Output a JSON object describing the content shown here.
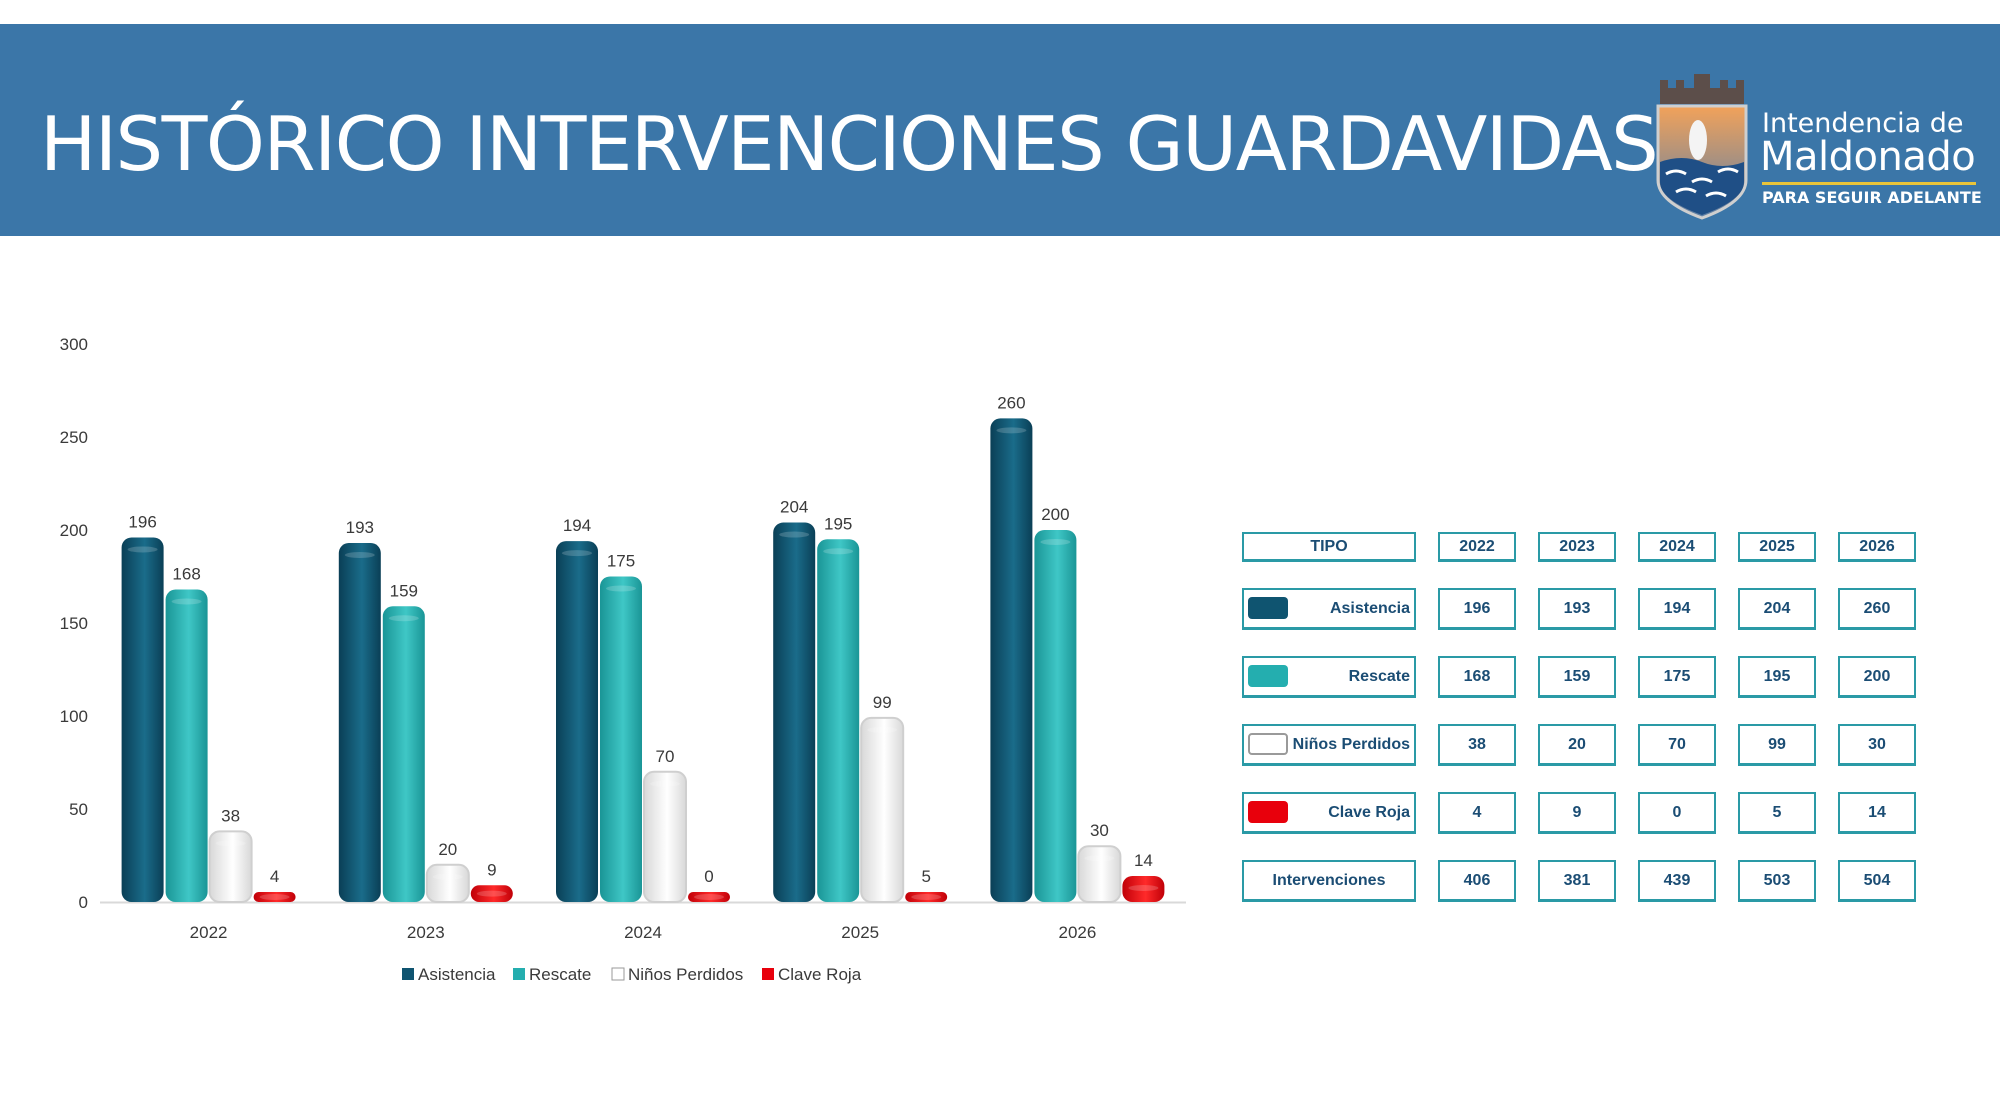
{
  "header": {
    "title": "HISTÓRICO INTERVENCIONES GUARDAVIDAS",
    "logo": {
      "line1": "Intendencia de",
      "line2": "Maldonado",
      "slogan": "PARA SEGUIR ADELANTE",
      "icon": "coat-of-arms-icon"
    }
  },
  "colors": {
    "header_bg": "#3b76a8",
    "asistencia": "#0f5470",
    "rescate": "#24aeaf",
    "ninos_perdidos": "#ffffff",
    "clave_roja": "#e8000c",
    "table_border": "#2a9aa6",
    "table_text": "#1b4d74"
  },
  "chart_data": {
    "type": "bar",
    "categories": [
      "2022",
      "2023",
      "2024",
      "2025",
      "2026"
    ],
    "series": [
      {
        "name": "Asistencia",
        "values": [
          196,
          193,
          194,
          204,
          260
        ]
      },
      {
        "name": "Rescate",
        "values": [
          168,
          159,
          175,
          195,
          200
        ]
      },
      {
        "name": "Niños Perdidos",
        "values": [
          38,
          20,
          70,
          99,
          30
        ]
      },
      {
        "name": "Clave Roja",
        "values": [
          4,
          9,
          0,
          5,
          14
        ]
      }
    ],
    "ylim": [
      0,
      300
    ],
    "yticks": [
      0,
      50,
      100,
      150,
      200,
      250,
      300
    ],
    "grid": false,
    "legend_position": "bottom",
    "data_labels": true
  },
  "table": {
    "header": [
      "TIPO",
      "2022",
      "2023",
      "2024",
      "2025",
      "2026"
    ],
    "rows": [
      {
        "label": "Asistencia",
        "values": [
          "196",
          "193",
          "194",
          "204",
          "260"
        ]
      },
      {
        "label": "Rescate",
        "values": [
          "168",
          "159",
          "175",
          "195",
          "200"
        ]
      },
      {
        "label": "Niños Perdidos",
        "values": [
          "38",
          "20",
          "70",
          "99",
          "30"
        ]
      },
      {
        "label": "Clave Roja",
        "values": [
          "4",
          "9",
          "0",
          "5",
          "14"
        ]
      },
      {
        "label": "Intervenciones",
        "values": [
          "406",
          "381",
          "439",
          "503",
          "504"
        ]
      }
    ]
  }
}
